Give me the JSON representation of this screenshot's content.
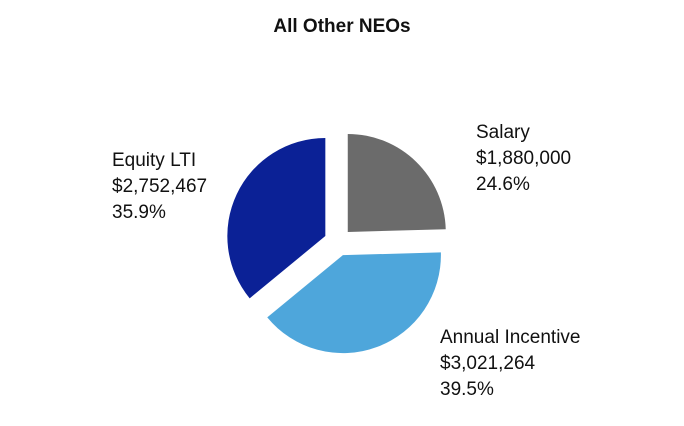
{
  "chart_data": {
    "type": "pie",
    "title": "All Other NEOs",
    "slices": [
      {
        "label": "Salary",
        "value": 1880000,
        "value_text": "$1,880,000",
        "percent": 24.6,
        "percent_text": "24.6%",
        "color": "#6b6b6b"
      },
      {
        "label": "Annual Incentive",
        "value": 3021264,
        "value_text": "$3,021,264",
        "percent": 39.5,
        "percent_text": "39.5%",
        "color": "#4ea6db"
      },
      {
        "label": "Equity LTI",
        "value": 2752467,
        "value_text": "$2,752,467",
        "percent": 35.9,
        "percent_text": "35.9%",
        "color": "#0b2196"
      }
    ],
    "exploded": true,
    "start_angle": "12 o'clock, clockwise"
  }
}
